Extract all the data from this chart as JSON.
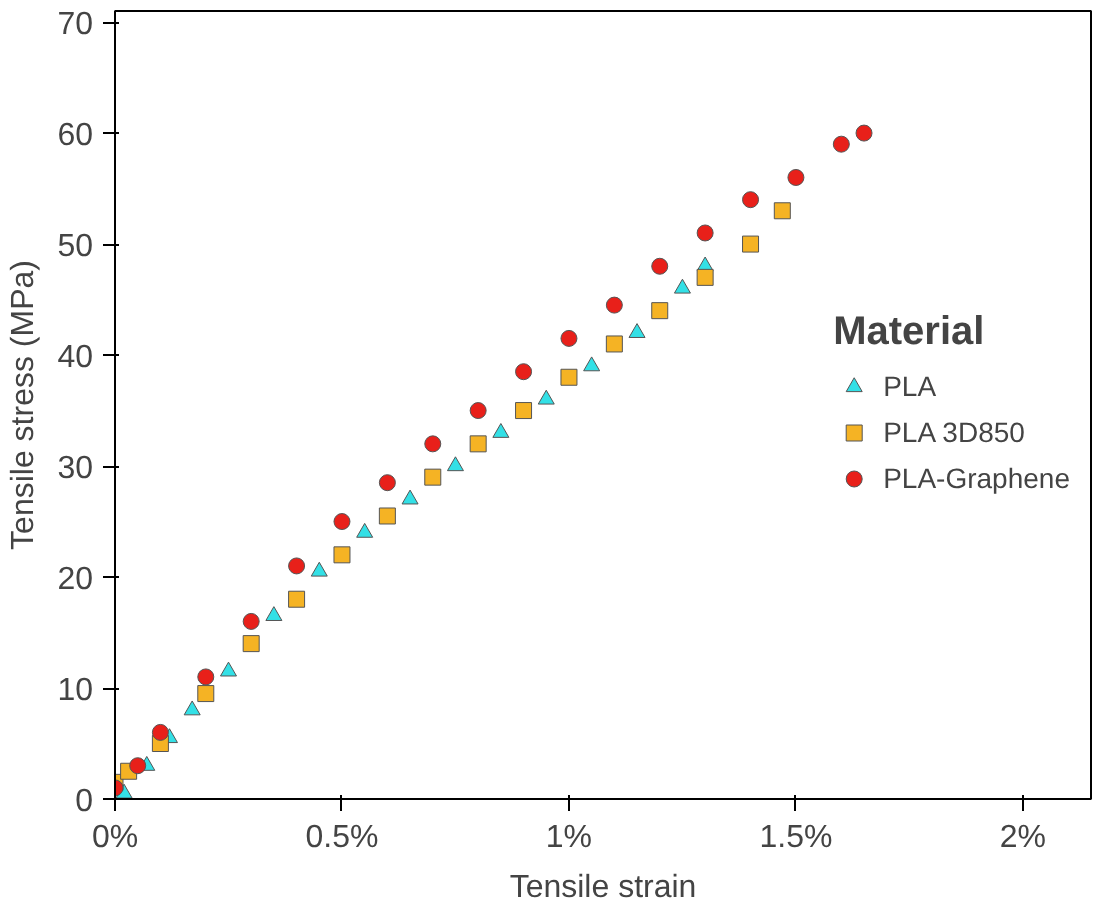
{
  "chart_data": {
    "type": "scatter",
    "xlabel": "Tensile strain",
    "ylabel": "Tensile stress (MPa)",
    "legend_title": "Material",
    "legend": "right",
    "grid": false,
    "xlim": [
      0,
      2.15
    ],
    "ylim": [
      0,
      71
    ],
    "xticks": [
      {
        "value": 0,
        "label": "0%"
      },
      {
        "value": 0.5,
        "label": "0.5%"
      },
      {
        "value": 1,
        "label": "1%"
      },
      {
        "value": 1.5,
        "label": "1.5%"
      },
      {
        "value": 2,
        "label": "2%"
      }
    ],
    "yticks": [
      0,
      10,
      20,
      30,
      40,
      50,
      60,
      70
    ],
    "series": [
      {
        "name": "PLA",
        "color": "#33e0e6",
        "marker": "triangle",
        "x": [
          0.02,
          0.07,
          0.12,
          0.17,
          0.25,
          0.35,
          0.45,
          0.55,
          0.65,
          0.75,
          0.85,
          0.95,
          1.05,
          1.15,
          1.25,
          1.3
        ],
        "values": [
          0.5,
          3,
          5.5,
          8,
          11.5,
          16.5,
          20.5,
          24,
          27,
          30,
          33,
          36,
          39,
          42,
          46,
          48
        ]
      },
      {
        "name": "PLA 3D850",
        "color": "#f5b324",
        "marker": "square",
        "x": [
          0,
          0.03,
          0.1,
          0.2,
          0.3,
          0.4,
          0.5,
          0.6,
          0.7,
          0.8,
          0.9,
          1.0,
          1.1,
          1.2,
          1.3,
          1.4,
          1.47
        ],
        "values": [
          1.5,
          2.5,
          5,
          9.5,
          14,
          18,
          22,
          25.5,
          29,
          32,
          35,
          38,
          41,
          44,
          47,
          50,
          53
        ]
      },
      {
        "name": "PLA-Graphene",
        "color": "#e8201a",
        "marker": "circle",
        "x": [
          0,
          0.05,
          0.1,
          0.2,
          0.3,
          0.4,
          0.5,
          0.6,
          0.7,
          0.8,
          0.9,
          1.0,
          1.1,
          1.2,
          1.3,
          1.4,
          1.5,
          1.6,
          1.65
        ],
        "values": [
          1,
          3,
          6,
          11,
          16,
          21,
          25,
          28.5,
          32,
          35,
          38.5,
          41.5,
          44.5,
          48,
          51,
          54,
          56,
          59,
          60
        ]
      }
    ]
  }
}
